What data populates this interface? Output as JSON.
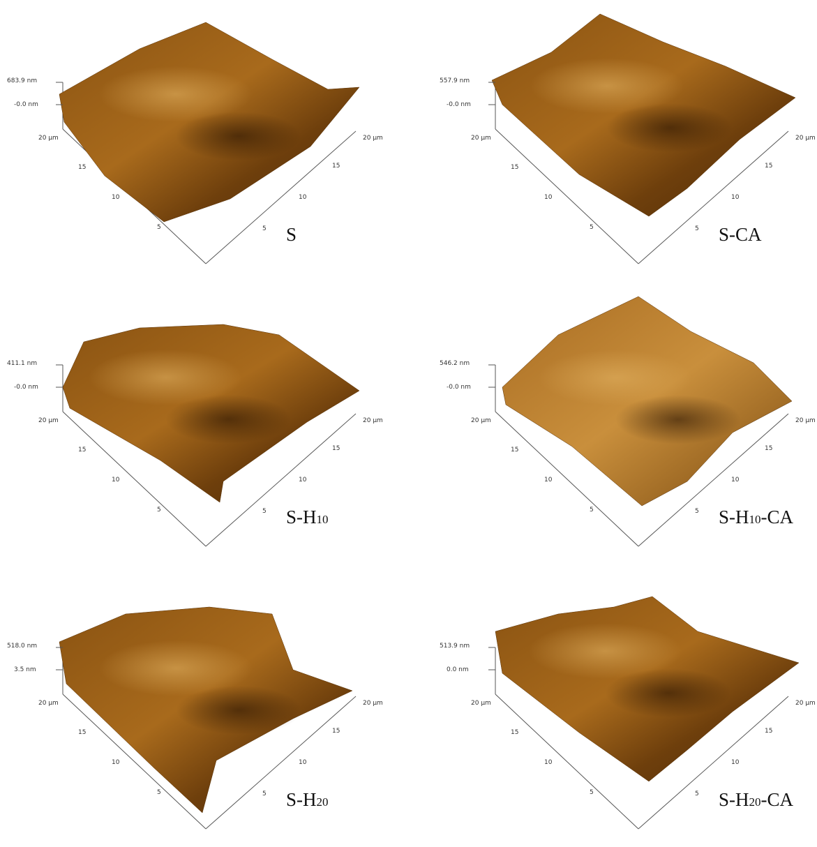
{
  "axis_ticks": [
    "20 µm",
    "15",
    "10",
    "5"
  ],
  "panels": [
    {
      "z_max": "683.9 nm",
      "z_min": "-0.0 nm",
      "label": {
        "main": "S"
      }
    },
    {
      "z_max": "557.9 nm",
      "z_min": "-0.0 nm",
      "label": {
        "main": "S-CA"
      }
    },
    {
      "z_max": "411.1 nm",
      "z_min": "-0.0 nm",
      "label": {
        "main": "S-H",
        "sub": "10"
      }
    },
    {
      "z_max": "546.2 nm",
      "z_min": "-0.0 nm",
      "label": {
        "main": "S-H",
        "sub": "10",
        "tail": "-CA"
      }
    },
    {
      "z_max": "518.0 nm",
      "z_min": "3.5 nm",
      "label": {
        "main": "S-H",
        "sub": "20"
      }
    },
    {
      "z_max": "513.9 nm",
      "z_min": "0.0 nm",
      "label": {
        "main": "S-H",
        "sub": "20",
        "tail": "-CA"
      }
    }
  ]
}
